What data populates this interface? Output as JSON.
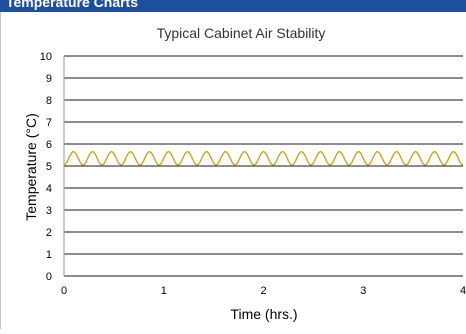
{
  "header": {
    "title": "Temperature Charts"
  },
  "chart_data": {
    "type": "line",
    "title": "Typical Cabinet Air Stability",
    "xlabel": "Time (hrs.)",
    "ylabel": "Temperature (°C)",
    "xlim": [
      0,
      4
    ],
    "ylim": [
      0,
      10
    ],
    "x_ticks": [
      0,
      1,
      2,
      3,
      4
    ],
    "y_ticks": [
      0,
      1,
      2,
      3,
      4,
      5,
      6,
      7,
      8,
      9,
      10
    ],
    "grid": "horizontal",
    "series": [
      {
        "color": "#c8a42a",
        "waveform": {
          "min": 5.05,
          "max": 5.65,
          "cycles": 21
        }
      }
    ]
  }
}
